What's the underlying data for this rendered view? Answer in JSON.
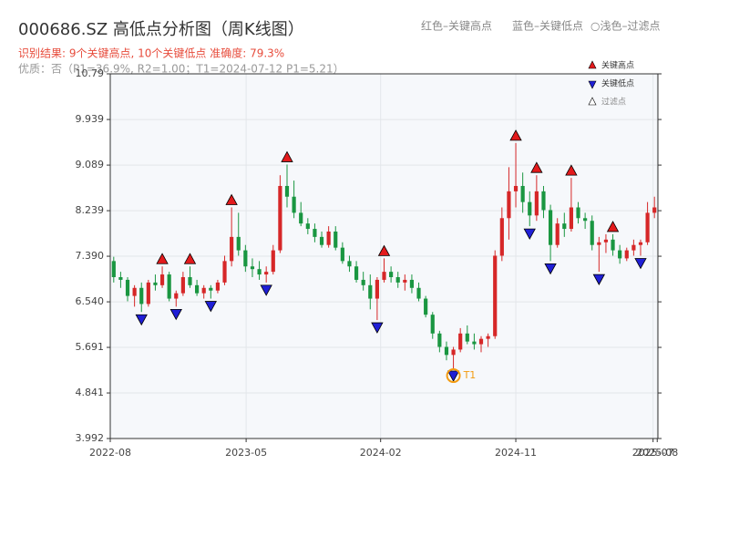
{
  "chart_data": {
    "type": "candlestick",
    "title": "000686.SZ 高低点分析图（周K线图）",
    "subtitle": "识别结果: 9个关键高点, 10个关键低点  准确度: 79.3%",
    "quality_note": "优质：否（P1=36.9%, R2=1.00；T1=2024-07-12 P1=5.21）",
    "header_legend": [
      "红色–关键高点",
      "蓝色–关键低点",
      "○浅色–过滤点"
    ],
    "legend": [
      {
        "name": "关键高点",
        "color": "#e31a1c"
      },
      {
        "name": "关键低点",
        "color": "#1f1fd6"
      },
      {
        "name": "过滤点",
        "color": "#ffffff"
      }
    ],
    "up_color": "#d62728",
    "down_color": "#1a9641",
    "xlim": [
      0,
      79
    ],
    "xticks": [
      {
        "value": 0,
        "label": "2022-08"
      },
      {
        "value": 19.6,
        "label": "2023-05"
      },
      {
        "value": 39,
        "label": "2024-02"
      },
      {
        "value": 58.5,
        "label": "2024-11"
      },
      {
        "value": 78.3,
        "label": "2025-07"
      },
      {
        "value": 78.9,
        "label": "2025-08"
      }
    ],
    "ylim": [
      3.992,
      10.79
    ],
    "yticks": [
      3.992,
      4.841,
      5.691,
      {
        "value": 6.54,
        "label": "6.540"
      },
      {
        "value": 7.39,
        "label": "7.390"
      },
      8.239,
      9.089,
      9.939,
      10.79
    ],
    "grid": true,
    "candles": [
      [
        7.3,
        7.38,
        6.9,
        7.0
      ],
      [
        7.0,
        7.1,
        6.8,
        6.95
      ],
      [
        6.95,
        7.0,
        6.55,
        6.65
      ],
      [
        6.65,
        6.85,
        6.45,
        6.8
      ],
      [
        6.8,
        6.9,
        6.35,
        6.5
      ],
      [
        6.5,
        6.95,
        6.45,
        6.9
      ],
      [
        6.9,
        7.05,
        6.75,
        6.85
      ],
      [
        6.85,
        7.2,
        6.8,
        7.05
      ],
      [
        7.05,
        7.1,
        6.55,
        6.6
      ],
      [
        6.6,
        6.75,
        6.45,
        6.7
      ],
      [
        6.7,
        7.1,
        6.65,
        7.0
      ],
      [
        7.0,
        7.2,
        6.8,
        6.85
      ],
      [
        6.85,
        6.95,
        6.65,
        6.7
      ],
      [
        6.7,
        6.85,
        6.6,
        6.8
      ],
      [
        6.8,
        6.85,
        6.6,
        6.75
      ],
      [
        6.75,
        6.95,
        6.7,
        6.9
      ],
      [
        6.9,
        7.4,
        6.85,
        7.3
      ],
      [
        7.3,
        8.3,
        7.2,
        7.75
      ],
      [
        7.75,
        8.2,
        7.4,
        7.5
      ],
      [
        7.5,
        7.6,
        7.1,
        7.2
      ],
      [
        7.2,
        7.35,
        7.0,
        7.15
      ],
      [
        7.15,
        7.3,
        6.95,
        7.05
      ],
      [
        7.05,
        7.2,
        6.9,
        7.1
      ],
      [
        7.1,
        7.6,
        7.05,
        7.5
      ],
      [
        7.5,
        8.9,
        7.45,
        8.7
      ],
      [
        8.7,
        9.1,
        8.3,
        8.5
      ],
      [
        8.5,
        8.8,
        8.1,
        8.2
      ],
      [
        8.2,
        8.4,
        7.95,
        8.0
      ],
      [
        8.0,
        8.1,
        7.8,
        7.9
      ],
      [
        7.9,
        8.0,
        7.65,
        7.75
      ],
      [
        7.75,
        7.85,
        7.55,
        7.6
      ],
      [
        7.6,
        7.95,
        7.55,
        7.85
      ],
      [
        7.85,
        7.95,
        7.5,
        7.55
      ],
      [
        7.55,
        7.65,
        7.25,
        7.3
      ],
      [
        7.3,
        7.4,
        7.1,
        7.2
      ],
      [
        7.2,
        7.3,
        6.9,
        6.95
      ],
      [
        6.95,
        7.1,
        6.75,
        6.85
      ],
      [
        6.85,
        7.05,
        6.4,
        6.6
      ],
      [
        6.6,
        7.0,
        6.2,
        6.95
      ],
      [
        6.95,
        7.35,
        6.9,
        7.1
      ],
      [
        7.1,
        7.2,
        6.9,
        7.0
      ],
      [
        7.0,
        7.1,
        6.8,
        6.9
      ],
      [
        6.9,
        7.05,
        6.75,
        6.95
      ],
      [
        6.95,
        7.05,
        6.7,
        6.8
      ],
      [
        6.8,
        6.9,
        6.55,
        6.6
      ],
      [
        6.6,
        6.65,
        6.25,
        6.3
      ],
      [
        6.3,
        6.35,
        5.85,
        5.95
      ],
      [
        5.95,
        6.0,
        5.6,
        5.7
      ],
      [
        5.7,
        5.8,
        5.45,
        5.55
      ],
      [
        5.55,
        5.7,
        5.3,
        5.65
      ],
      [
        5.65,
        6.05,
        5.6,
        5.95
      ],
      [
        5.95,
        6.1,
        5.75,
        5.8
      ],
      [
        5.8,
        5.95,
        5.65,
        5.75
      ],
      [
        5.75,
        5.9,
        5.6,
        5.85
      ],
      [
        5.85,
        5.95,
        5.7,
        5.9
      ],
      [
        5.9,
        7.5,
        5.85,
        7.4
      ],
      [
        7.4,
        8.3,
        7.3,
        8.1
      ],
      [
        8.1,
        9.05,
        7.7,
        8.6
      ],
      [
        8.6,
        9.5,
        8.3,
        8.7
      ],
      [
        8.7,
        8.95,
        8.2,
        8.4
      ],
      [
        8.4,
        8.6,
        7.95,
        8.15
      ],
      [
        8.15,
        8.9,
        8.05,
        8.6
      ],
      [
        8.6,
        8.7,
        8.1,
        8.25
      ],
      [
        8.25,
        8.35,
        7.3,
        7.6
      ],
      [
        7.6,
        8.1,
        7.55,
        8.0
      ],
      [
        8.0,
        8.2,
        7.75,
        7.9
      ],
      [
        7.9,
        8.85,
        7.85,
        8.3
      ],
      [
        8.3,
        8.4,
        8.0,
        8.1
      ],
      [
        8.1,
        8.2,
        7.9,
        8.05
      ],
      [
        8.05,
        8.15,
        7.5,
        7.6
      ],
      [
        7.6,
        7.75,
        7.1,
        7.65
      ],
      [
        7.65,
        7.8,
        7.45,
        7.7
      ],
      [
        7.7,
        7.8,
        7.4,
        7.5
      ],
      [
        7.5,
        7.6,
        7.25,
        7.35
      ],
      [
        7.35,
        7.55,
        7.3,
        7.5
      ],
      [
        7.5,
        7.7,
        7.4,
        7.6
      ],
      [
        7.6,
        7.7,
        7.4,
        7.65
      ],
      [
        7.65,
        8.4,
        7.6,
        8.2
      ],
      [
        8.2,
        8.5,
        8.1,
        8.3
      ]
    ],
    "key_highs": [
      7,
      11,
      17,
      25,
      39,
      58,
      61,
      66,
      72
    ],
    "key_lows": [
      4,
      9,
      14,
      22,
      38,
      49,
      60,
      63,
      70,
      76
    ],
    "annotation": {
      "label": "T1",
      "index": 49,
      "color": "#f39c12"
    }
  }
}
